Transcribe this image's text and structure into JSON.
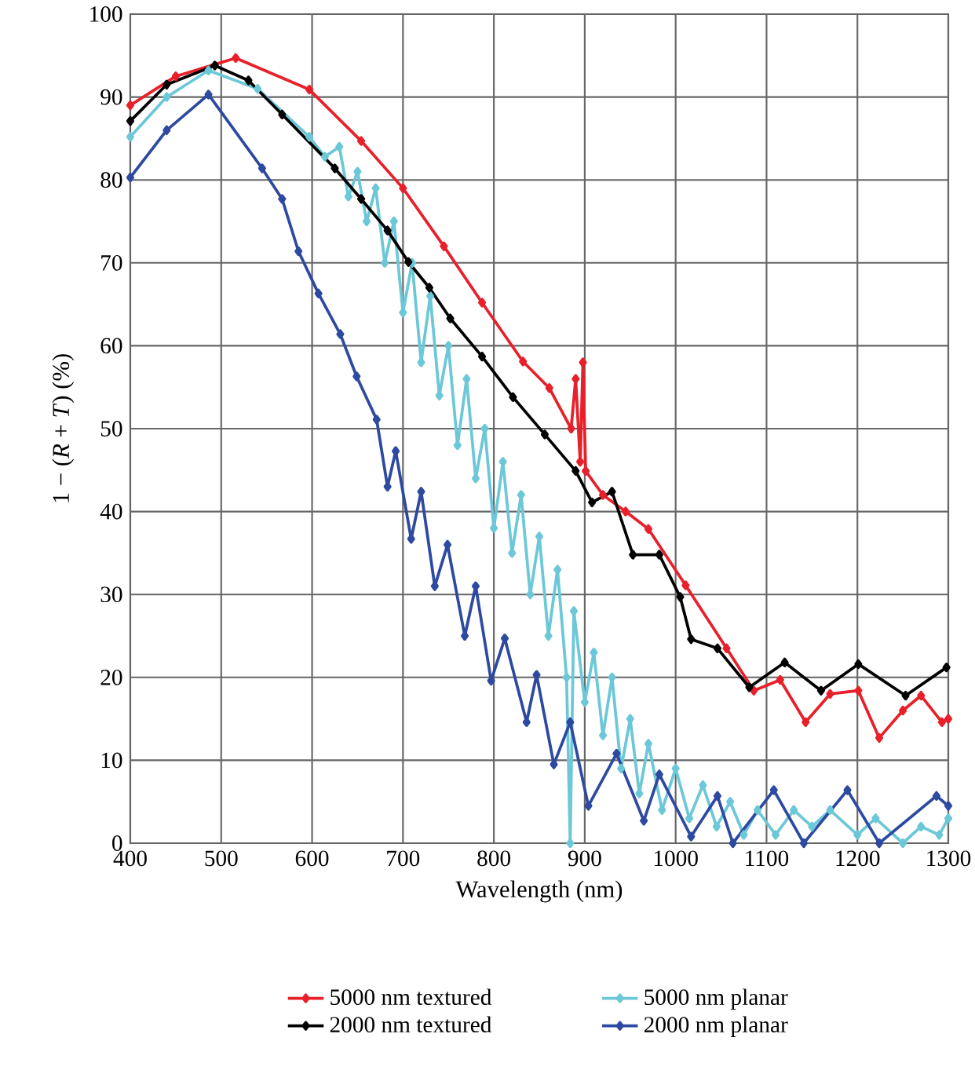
{
  "chart_data": {
    "type": "line",
    "xlabel": "Wavelength (nm)",
    "ylabel": "1 − (*R* + *T*) (%)",
    "xlim": [
      400,
      1300
    ],
    "ylim": [
      0,
      100
    ],
    "xticks": [
      400,
      500,
      600,
      700,
      800,
      900,
      1000,
      1100,
      1200,
      1300
    ],
    "yticks": [
      0,
      10,
      20,
      30,
      40,
      50,
      60,
      70,
      80,
      90,
      100
    ],
    "grid": true,
    "legend": "bottom",
    "marker": "diamond",
    "line_style": "solid",
    "series": [
      {
        "name": "5000 nm textured",
        "color": "#e8202a",
        "x": [
          400,
          450,
          516,
          597,
          654,
          700,
          745,
          787,
          832,
          861,
          885,
          890,
          895,
          898,
          901,
          920,
          945,
          970,
          1011,
          1056,
          1086,
          1115,
          1143,
          1170,
          1201,
          1224,
          1250,
          1270,
          1293,
          1300
        ],
        "values": [
          89,
          92.5,
          94.7,
          90.9,
          84.7,
          79,
          72,
          65.2,
          58.1,
          54.9,
          50,
          56,
          46,
          58,
          44.9,
          42,
          40,
          37.9,
          31.1,
          23.5,
          18.4,
          19.7,
          14.6,
          18,
          18.4,
          12.7,
          16,
          17.8,
          14.6,
          15
        ]
      },
      {
        "name": "5000 nm planar",
        "color": "#6cc8d8",
        "x": [
          400,
          440,
          486,
          540,
          597,
          614,
          630,
          640,
          650,
          660,
          670,
          680,
          690,
          700,
          710,
          720,
          730,
          740,
          750,
          760,
          770,
          780,
          790,
          800,
          810,
          820,
          830,
          840,
          850,
          860,
          870,
          880,
          884,
          888,
          900,
          910,
          920,
          930,
          940,
          950,
          960,
          970,
          985,
          1000,
          1015,
          1030,
          1045,
          1060,
          1075,
          1090,
          1110,
          1130,
          1150,
          1170,
          1200,
          1220,
          1250,
          1270,
          1290,
          1300
        ],
        "values": [
          85.2,
          90,
          93.2,
          91,
          85.2,
          82.8,
          84,
          78,
          81,
          75,
          79,
          70,
          75,
          64,
          70,
          58,
          66,
          54,
          60,
          48,
          56,
          44,
          50,
          38,
          46,
          35,
          42,
          30,
          37,
          25,
          33,
          20,
          0,
          28,
          17,
          23,
          13,
          20,
          9,
          15,
          6,
          12,
          4,
          9,
          3,
          7,
          2,
          5,
          1,
          4,
          1,
          4,
          2,
          4,
          1,
          3,
          0,
          2,
          1,
          3
        ]
      },
      {
        "name": "2000 nm textured",
        "color": "#000000",
        "x": [
          400,
          440,
          493,
          530,
          567,
          625,
          654,
          683,
          706,
          729,
          752,
          787,
          821,
          856,
          890,
          908,
          930,
          953,
          982,
          1005,
          1017,
          1046,
          1081,
          1120,
          1160,
          1201,
          1253,
          1298
        ],
        "values": [
          87.1,
          91.5,
          93.8,
          92,
          87.9,
          81.4,
          77.7,
          73.9,
          70.1,
          67,
          63.3,
          58.7,
          53.8,
          49.3,
          44.9,
          41.1,
          42.4,
          34.8,
          34.8,
          29.7,
          24.6,
          23.5,
          18.8,
          21.8,
          18.4,
          21.6,
          17.8,
          21.2
        ]
      },
      {
        "name": "2000 nm planar",
        "color": "#2e4aa0",
        "x": [
          400,
          440,
          486,
          545,
          567,
          585,
          607,
          631,
          649,
          671,
          683,
          692,
          709,
          720,
          735,
          749,
          768,
          780,
          797,
          812,
          836,
          847,
          866,
          884,
          904,
          935,
          965,
          982,
          1017,
          1046,
          1063,
          1108,
          1141,
          1189,
          1224,
          1287,
          1300
        ],
        "values": [
          80.3,
          86,
          90.3,
          81.4,
          77.7,
          71.4,
          66.3,
          61.4,
          56.3,
          51.1,
          43,
          47.3,
          36.7,
          42.4,
          31,
          36,
          25,
          31,
          19.6,
          24.7,
          14.6,
          20.3,
          9.5,
          14.6,
          4.5,
          10.8,
          2.7,
          8.3,
          0.8,
          5.7,
          0,
          6.4,
          0,
          6.4,
          0,
          5.7,
          4.5
        ]
      }
    ]
  }
}
